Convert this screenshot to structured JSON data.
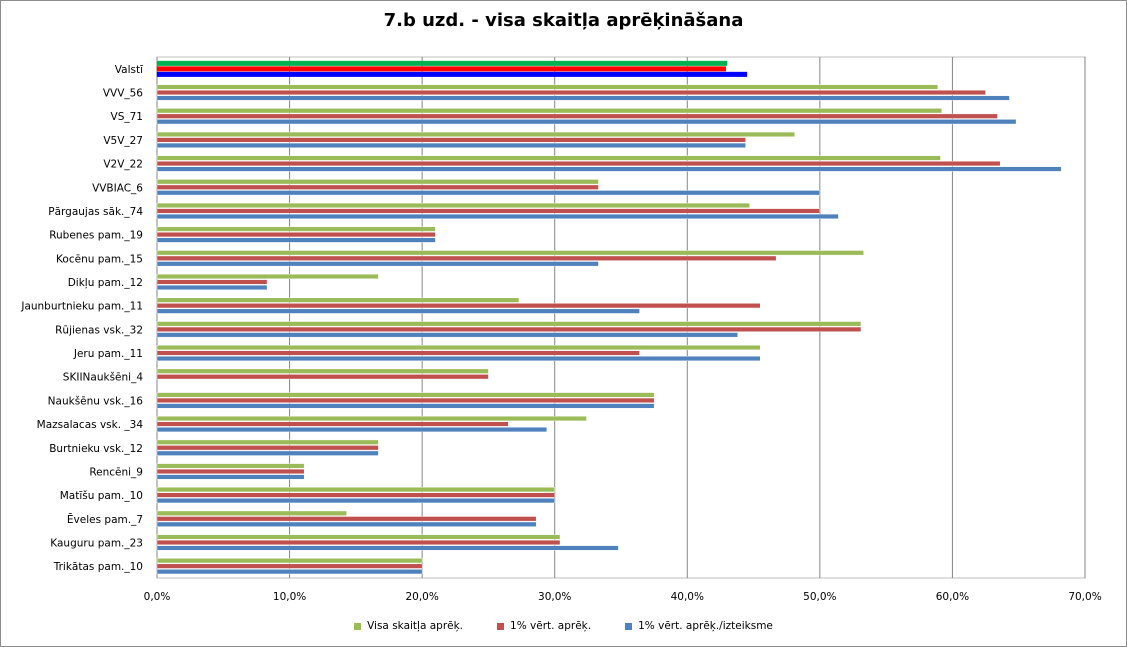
{
  "chart_data": {
    "type": "bar",
    "orientation": "horizontal",
    "title": "7.b uzd.  - visa skaitļa aprēķināšana",
    "categories": [
      "Valstī",
      "VVV_56",
      "VS_71",
      "V5V_27",
      "V2V_22",
      "VVBIAC_6",
      "Pārgaujas sāk._74",
      "Rubenes pam._19",
      "Kocēnu pam._15",
      "Dikļu pam._12",
      "Jaunburtnieku pam._11",
      "Rūjienas vsk._32",
      "Jeru pam._11",
      "SKIINaukšēni_4",
      "Naukšēnu vsk._16",
      "Mazsalacas vsk. _34",
      "Burtnieku vsk._12",
      "Rencēni_9",
      "Matīšu pam._10",
      "Ēveles pam._7",
      "Kauguru pam._23",
      "Trikātas pam._10"
    ],
    "series": [
      {
        "name": "Visa skaitļa aprēķ.",
        "color": "#9bbb59",
        "values": [
          43.0,
          58.9,
          59.2,
          48.1,
          59.1,
          33.3,
          44.7,
          21.0,
          53.3,
          16.7,
          27.3,
          53.1,
          45.5,
          25.0,
          37.5,
          32.4,
          16.7,
          11.1,
          30.0,
          14.3,
          30.4,
          20.0
        ]
      },
      {
        "name": "1% vērt. aprēķ.",
        "color": "#c0504d",
        "values": [
          42.9,
          62.5,
          63.4,
          44.4,
          63.6,
          33.3,
          50.0,
          21.0,
          46.7,
          8.3,
          45.5,
          53.1,
          36.4,
          25.0,
          37.5,
          26.5,
          16.7,
          11.1,
          30.0,
          28.6,
          30.4,
          20.0
        ]
      },
      {
        "name": "1% vērt. aprēķ./izteiksme",
        "color": "#4f81bd",
        "values": [
          44.5,
          64.3,
          64.8,
          44.4,
          68.2,
          50.0,
          51.4,
          21.0,
          33.3,
          8.3,
          36.4,
          43.8,
          45.5,
          0.0,
          37.5,
          29.4,
          16.7,
          11.1,
          30.0,
          28.6,
          34.8,
          20.0
        ]
      }
    ],
    "highlight_row": {
      "category": "Valstī",
      "colors": [
        "#00b050",
        "#ff0000",
        "#0000ff"
      ]
    },
    "xlim": [
      0,
      70
    ],
    "xticks": [
      "0,0%",
      "10,0%",
      "20,0%",
      "30,0%",
      "40,0%",
      "50,0%",
      "60,0%",
      "70,0%"
    ],
    "grid": "vertical",
    "legend_position": "bottom"
  }
}
